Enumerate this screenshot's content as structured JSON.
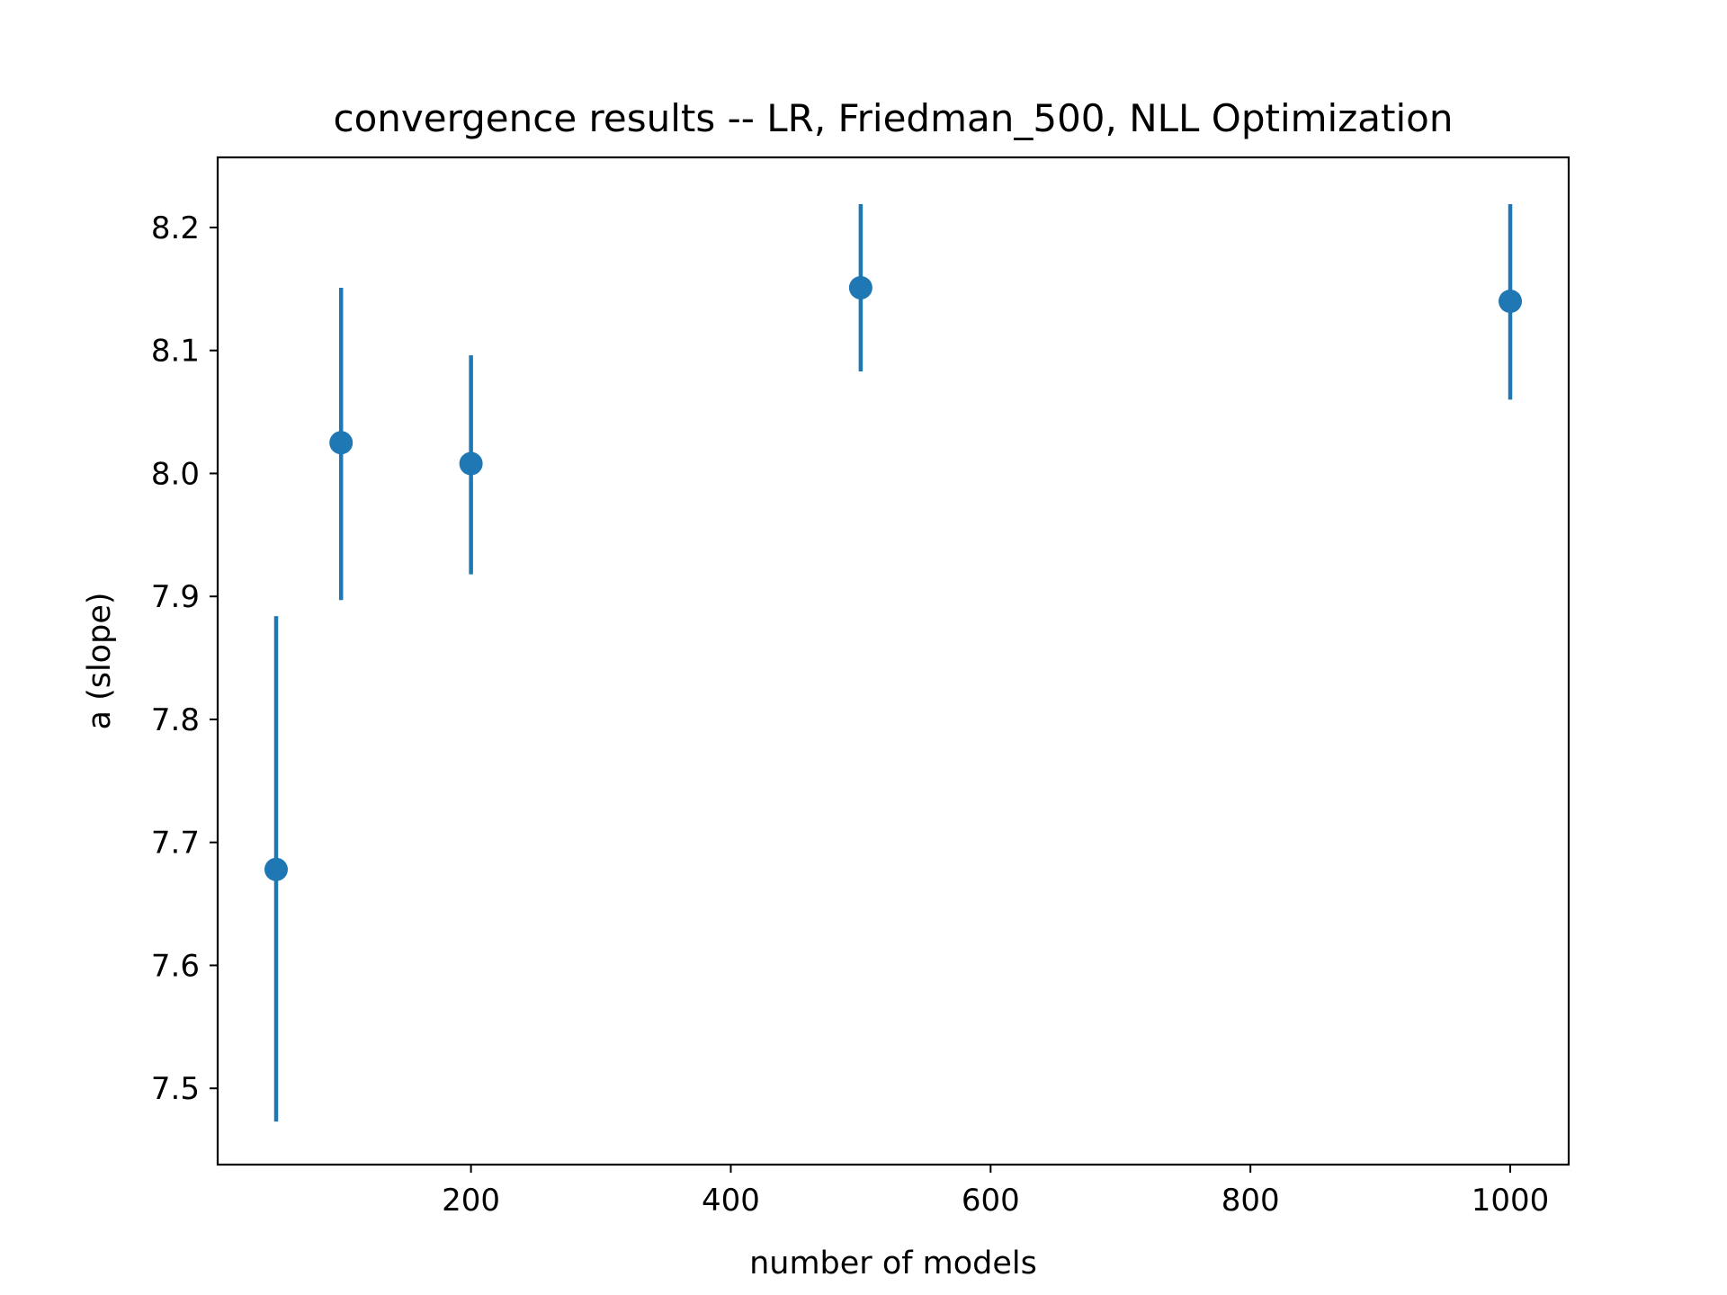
{
  "chart_data": {
    "type": "scatter",
    "title": "convergence results -- LR, Friedman_500, NLL Optimization",
    "xlabel": "number of models",
    "ylabel": "a (slope)",
    "xlim": [
      5,
      1045
    ],
    "ylim": [
      7.438,
      8.257
    ],
    "xticks": [
      200,
      400,
      600,
      800,
      1000
    ],
    "xtick_labels": [
      "200",
      "400",
      "600",
      "800",
      "1000"
    ],
    "yticks": [
      7.5,
      7.6,
      7.7,
      7.8,
      7.9,
      8.0,
      8.1,
      8.2
    ],
    "ytick_labels": [
      "7.5",
      "7.6",
      "7.7",
      "7.8",
      "7.9",
      "8.0",
      "8.1",
      "8.2"
    ],
    "grid": false,
    "series": [
      {
        "color": "#1f77b4",
        "points": [
          {
            "x": 50,
            "y": 7.678,
            "err_low": 7.473,
            "err_high": 7.884
          },
          {
            "x": 100,
            "y": 8.025,
            "err_low": 7.897,
            "err_high": 8.151
          },
          {
            "x": 200,
            "y": 8.008,
            "err_low": 7.918,
            "err_high": 8.096
          },
          {
            "x": 500,
            "y": 8.151,
            "err_low": 8.083,
            "err_high": 8.219
          },
          {
            "x": 1000,
            "y": 8.14,
            "err_low": 8.06,
            "err_high": 8.219
          }
        ]
      }
    ]
  }
}
